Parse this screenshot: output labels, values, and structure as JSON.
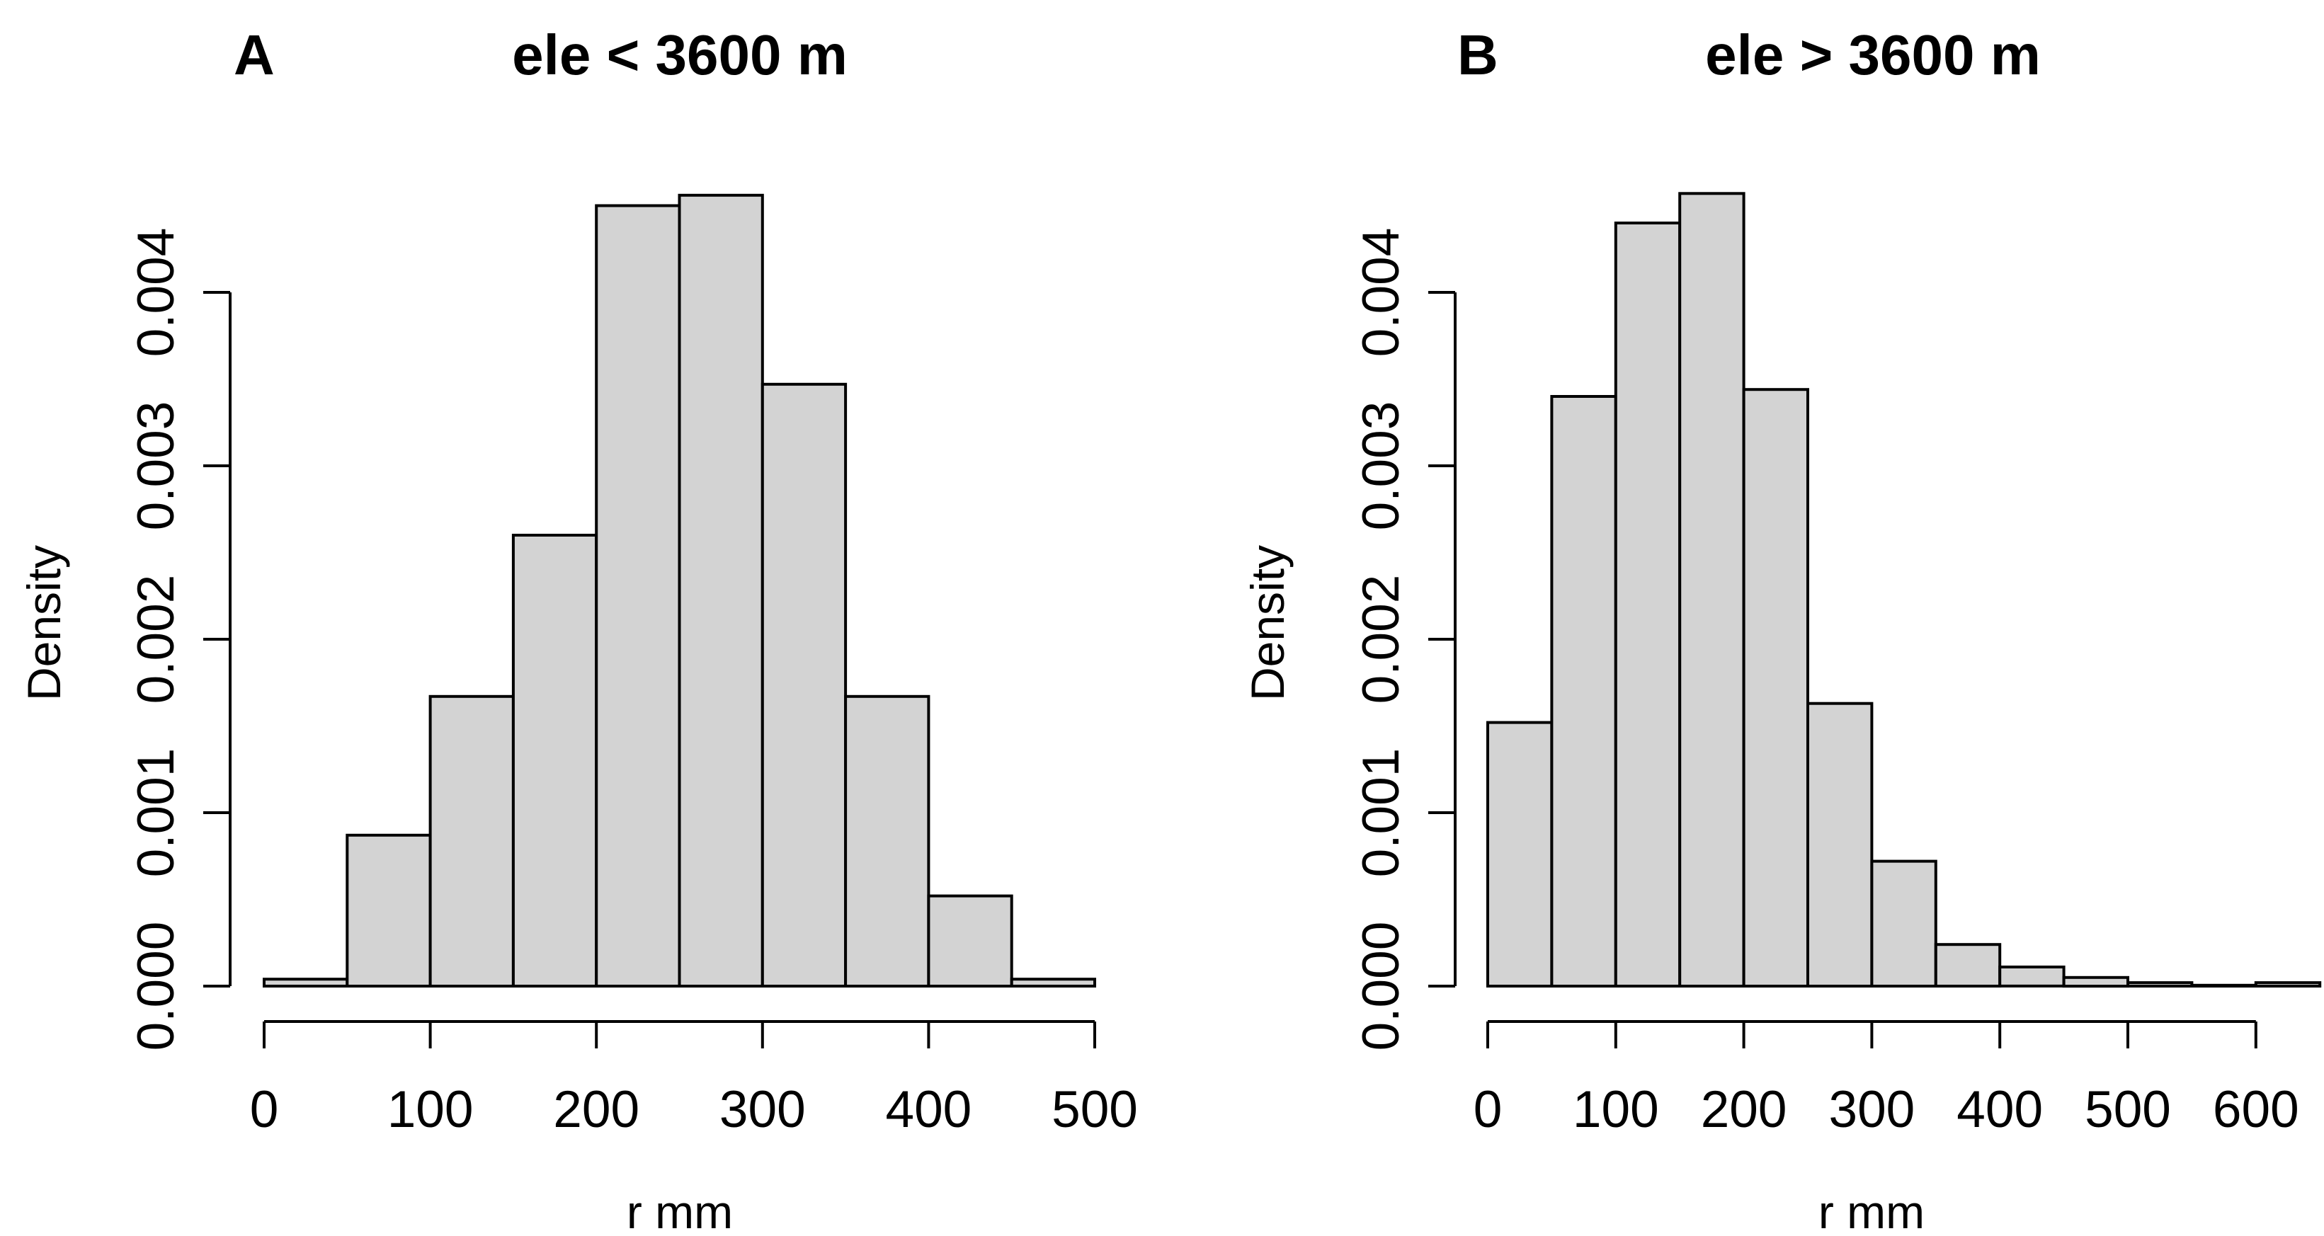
{
  "figure": {
    "background_color": "#ffffff",
    "text_color": "#000000"
  },
  "chart_data": [
    {
      "type": "bar",
      "subtype": "histogram",
      "panel_letter": "A",
      "title": "ele < 3600 m",
      "xlabel": "r mm",
      "ylabel": "Density",
      "bin_start": 0,
      "bin_width": 50,
      "bin_edges": [
        0,
        50,
        100,
        150,
        200,
        250,
        300,
        350,
        400,
        450,
        500
      ],
      "values": [
        4e-05,
        0.00087,
        0.00167,
        0.0026,
        0.0045,
        0.00456,
        0.00347,
        0.00167,
        0.00052,
        4e-05
      ],
      "x_ticks": [
        0,
        100,
        200,
        300,
        400,
        500
      ],
      "x_tick_labels": [
        "0",
        "100",
        "200",
        "300",
        "400",
        "500"
      ],
      "y_ticks": [
        0,
        0.001,
        0.002,
        0.003,
        0.004
      ],
      "y_tick_labels": [
        "0.000",
        "0.001",
        "0.002",
        "0.003",
        "0.004"
      ],
      "xlim": [
        0,
        500
      ],
      "ylim": [
        0,
        0.004
      ],
      "grid": false,
      "legend": null,
      "bar_fill": "#d3d3d3",
      "bar_stroke": "#000000"
    },
    {
      "type": "bar",
      "subtype": "histogram",
      "panel_letter": "B",
      "title": "ele > 3600 m",
      "xlabel": "r mm",
      "ylabel": "Density",
      "bin_start": 0,
      "bin_width": 50,
      "bin_edges": [
        0,
        50,
        100,
        150,
        200,
        250,
        300,
        350,
        400,
        450,
        500,
        550,
        600,
        650
      ],
      "values": [
        0.00152,
        0.0034,
        0.0044,
        0.00457,
        0.00344,
        0.00163,
        0.00072,
        0.00024,
        0.00011,
        5e-05,
        2e-05,
        5e-06,
        2e-05
      ],
      "x_ticks": [
        0,
        100,
        200,
        300,
        400,
        500,
        600
      ],
      "x_tick_labels": [
        "0",
        "100",
        "200",
        "300",
        "400",
        "500",
        "600"
      ],
      "y_ticks": [
        0,
        0.001,
        0.002,
        0.003,
        0.004
      ],
      "y_tick_labels": [
        "0.000",
        "0.001",
        "0.002",
        "0.003",
        "0.004"
      ],
      "xlim": [
        0,
        650
      ],
      "ylim": [
        0,
        0.004
      ],
      "grid": false,
      "legend": null,
      "bar_fill": "#d3d3d3",
      "bar_stroke": "#000000"
    }
  ]
}
